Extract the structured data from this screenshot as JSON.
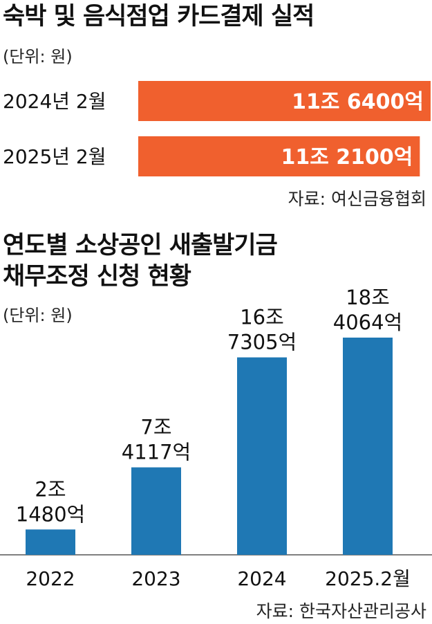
{
  "colors": {
    "hbar": "#f0602e",
    "vbar": "#1f78b4",
    "text": "#111111"
  },
  "chart_data": [
    {
      "type": "bar",
      "orientation": "horizontal",
      "title": "숙박 및 음식점업 카드결제 실적",
      "unit_label": "(단위: 원)",
      "categories": [
        "2024년 2월",
        "2025년 2월"
      ],
      "values": [
        116400,
        112100
      ],
      "value_unit": "억원",
      "data_labels": [
        "11조 6400억",
        "11조 2100억"
      ],
      "source": "자료: 여신금융협회"
    },
    {
      "type": "bar",
      "title_lines": [
        "연도별 소상공인 새출발기금",
        "채무조정 신청 현황"
      ],
      "unit_label": "(단위: 원)",
      "categories": [
        "2022",
        "2023",
        "2024",
        "2025.2월"
      ],
      "values": [
        21480,
        74117,
        167305,
        184064
      ],
      "value_unit": "억원",
      "data_labels": [
        [
          "2조",
          "1480억"
        ],
        [
          "7조",
          "4117억"
        ],
        [
          "16조",
          "7305억"
        ],
        [
          "18조",
          "4064억"
        ]
      ],
      "source": "자료: 한국자산관리공사"
    }
  ]
}
